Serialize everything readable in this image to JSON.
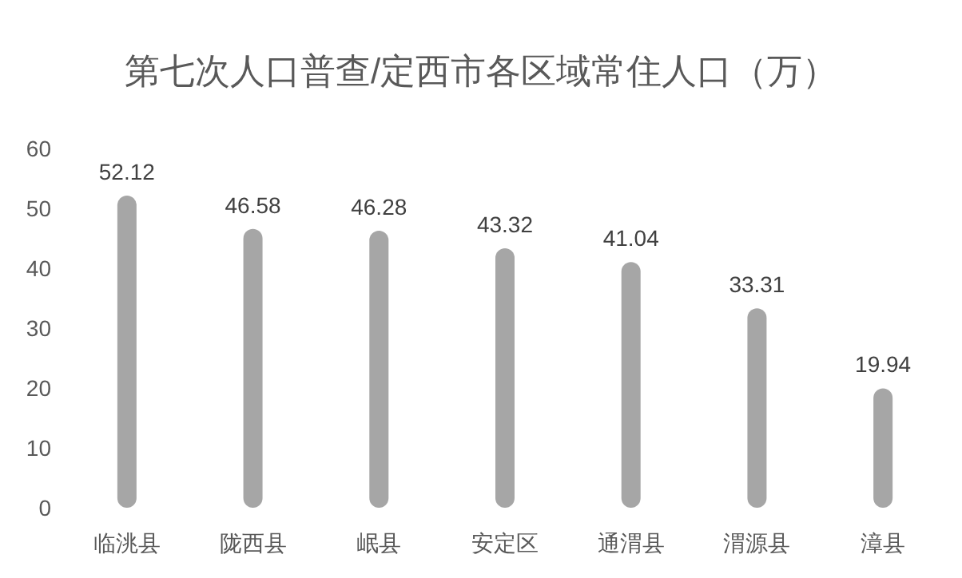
{
  "chart_data": {
    "type": "bar",
    "title": "第七次人口普查/定西市各区域常住人口（万）",
    "categories": [
      "临洮县",
      "陇西县",
      "岷县",
      "安定区",
      "通渭县",
      "渭源县",
      "漳县"
    ],
    "values": [
      52.12,
      46.58,
      46.28,
      43.32,
      41.04,
      33.31,
      19.94
    ],
    "color": "#a6a6a6",
    "ylim": [
      0,
      60
    ],
    "yticks": [
      0,
      10,
      20,
      30,
      40,
      50,
      60
    ],
    "data_labels": true,
    "grid": false
  }
}
